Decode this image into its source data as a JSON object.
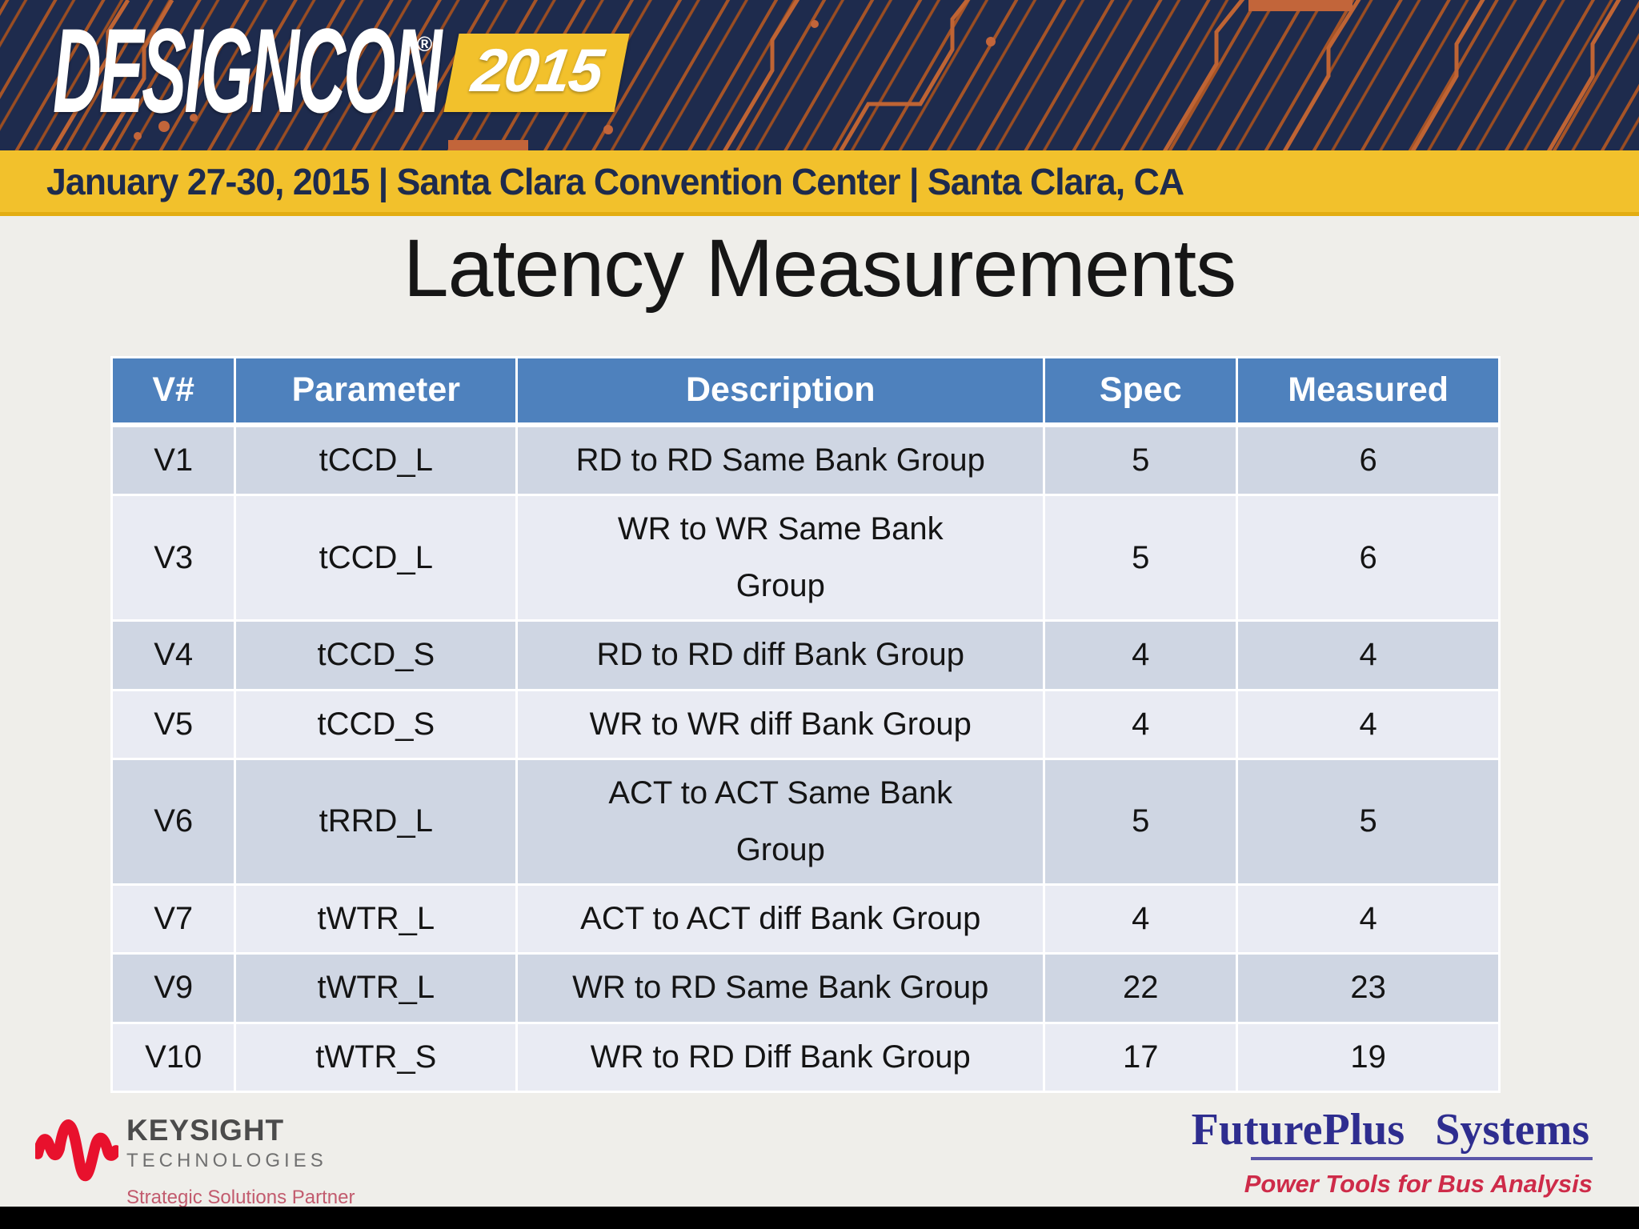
{
  "colors": {
    "background": "#efeeea",
    "banner-navy": "#1e2b4d",
    "trace-orange": "#a65427",
    "bar-yellow": "#f2c12c",
    "header-blue": "#4e81bd",
    "row-dark": "#cfd6e3",
    "row-light": "#e9ebf3",
    "keysight-red": "#e8112d",
    "keysight-pink": "#c25b6e",
    "futureplus-blue": "#2e2d8f",
    "futureplus-red": "#ce2b49"
  },
  "banner": {
    "logo_text": "DesignCon",
    "registered_mark": "®",
    "logo_year": "2015",
    "event_info": "January 27-30, 2015 | Santa Clara Convention Center | Santa Clara, CA"
  },
  "slide": {
    "title": "Latency Measurements"
  },
  "table": {
    "headers": [
      "V#",
      "Parameter",
      "Description",
      "Spec",
      "Measured"
    ],
    "rows": [
      [
        "V1",
        "tCCD_L",
        "RD to RD Same Bank Group",
        "5",
        "6"
      ],
      [
        "V3",
        "tCCD_L",
        "WR to WR Same Bank\nGroup",
        "5",
        "6"
      ],
      [
        "V4",
        "tCCD_S",
        "RD to RD diff Bank Group",
        "4",
        "4"
      ],
      [
        "V5",
        "tCCD_S",
        "WR to WR diff Bank Group",
        "4",
        "4"
      ],
      [
        "V6",
        "tRRD_L",
        "ACT to ACT Same Bank\nGroup",
        "5",
        "5"
      ],
      [
        "V7",
        "tWTR_L",
        "ACT to ACT diff Bank Group",
        "4",
        "4"
      ],
      [
        "V9",
        "tWTR_L",
        "WR to RD Same Bank Group",
        "22",
        "23"
      ],
      [
        "V10",
        "tWTR_S",
        "WR to RD Diff Bank Group",
        "17",
        "19"
      ]
    ]
  },
  "footer": {
    "keysight": {
      "name": "KEYSIGHT",
      "division": "TECHNOLOGIES",
      "tagline": "Strategic Solutions Partner"
    },
    "futureplus": {
      "name": "FuturePlus Systems",
      "tagline": "Power Tools for Bus Analysis"
    }
  }
}
